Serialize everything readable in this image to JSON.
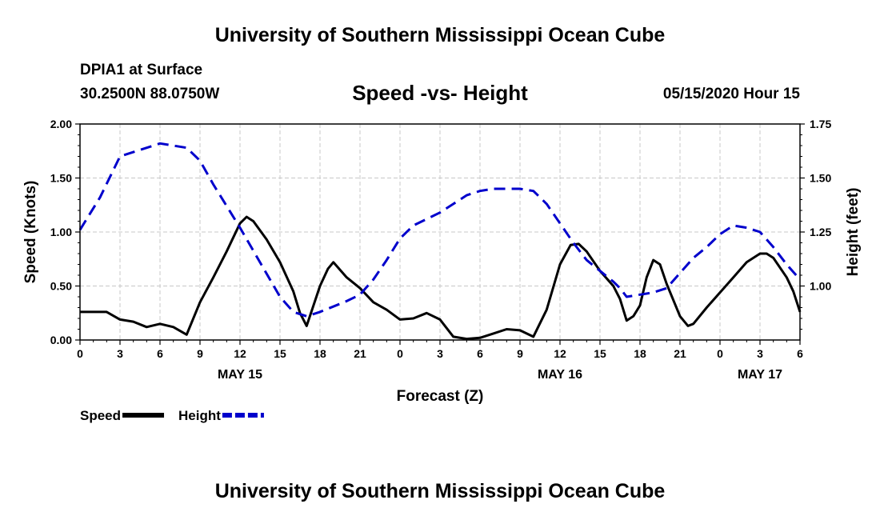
{
  "header": {
    "title": "University of Southern Mississippi Ocean Cube",
    "station_name": "DPIA1 at Surface",
    "station_coords": "30.2500N 88.0750W",
    "subtitle": "Speed -vs- Height",
    "run_time": "05/15/2020 Hour 15"
  },
  "footer": {
    "title": "University of Southern Mississippi Ocean Cube"
  },
  "chart_data": {
    "type": "line",
    "title": "Speed -vs- Height",
    "xlabel": "Forecast (Z)",
    "ylabel": "Speed (Knots)",
    "y2label": "Height (feet)",
    "xlim": [
      0,
      54
    ],
    "ylim": [
      0,
      2.0
    ],
    "y2lim": [
      0.75,
      1.75
    ],
    "x_ticks": [
      0,
      3,
      6,
      9,
      12,
      15,
      18,
      21,
      24,
      27,
      30,
      33,
      36,
      39,
      42,
      45,
      48,
      51,
      54
    ],
    "x_tick_labels": [
      "0",
      "3",
      "6",
      "9",
      "12",
      "15",
      "18",
      "21",
      "0",
      "3",
      "6",
      "9",
      "12",
      "15",
      "18",
      "21",
      "0",
      "3",
      "6"
    ],
    "day_labels": [
      {
        "x": 12,
        "label": "MAY 15"
      },
      {
        "x": 36,
        "label": "MAY 16"
      },
      {
        "x": 51,
        "label": "MAY 17"
      }
    ],
    "y_ticks": [
      0,
      0.5,
      1.0,
      1.5,
      2.0
    ],
    "y_tick_labels": [
      "0.00",
      "0.50",
      "1.00",
      "1.50",
      "2.00"
    ],
    "y2_ticks": [
      1.0,
      1.25,
      1.5,
      1.75
    ],
    "y2_tick_labels": [
      "1.00",
      "1.25",
      "1.50",
      "1.75"
    ],
    "grid": true,
    "series": [
      {
        "name": "Speed",
        "axis": "left",
        "color": "#000000",
        "style": "solid",
        "points": [
          [
            0,
            0.26
          ],
          [
            2,
            0.26
          ],
          [
            3,
            0.19
          ],
          [
            4,
            0.17
          ],
          [
            5,
            0.12
          ],
          [
            6,
            0.15
          ],
          [
            7,
            0.12
          ],
          [
            8,
            0.05
          ],
          [
            9,
            0.35
          ],
          [
            10,
            0.58
          ],
          [
            11,
            0.82
          ],
          [
            12,
            1.08
          ],
          [
            12.5,
            1.14
          ],
          [
            13,
            1.1
          ],
          [
            14,
            0.93
          ],
          [
            15,
            0.72
          ],
          [
            16,
            0.45
          ],
          [
            16.5,
            0.25
          ],
          [
            17,
            0.13
          ],
          [
            18,
            0.5
          ],
          [
            18.6,
            0.66
          ],
          [
            19,
            0.72
          ],
          [
            20,
            0.58
          ],
          [
            21,
            0.48
          ],
          [
            22,
            0.35
          ],
          [
            23,
            0.28
          ],
          [
            24,
            0.19
          ],
          [
            25,
            0.2
          ],
          [
            26,
            0.25
          ],
          [
            27,
            0.19
          ],
          [
            28,
            0.03
          ],
          [
            29,
            0.01
          ],
          [
            30,
            0.02
          ],
          [
            31,
            0.06
          ],
          [
            32,
            0.1
          ],
          [
            33,
            0.09
          ],
          [
            34,
            0.03
          ],
          [
            35,
            0.28
          ],
          [
            36,
            0.7
          ],
          [
            36.8,
            0.88
          ],
          [
            37.4,
            0.89
          ],
          [
            38,
            0.82
          ],
          [
            39,
            0.64
          ],
          [
            40,
            0.5
          ],
          [
            40.5,
            0.38
          ],
          [
            41,
            0.18
          ],
          [
            41.5,
            0.22
          ],
          [
            42,
            0.32
          ],
          [
            42.5,
            0.58
          ],
          [
            43,
            0.74
          ],
          [
            43.5,
            0.7
          ],
          [
            44,
            0.52
          ],
          [
            45,
            0.22
          ],
          [
            45.6,
            0.13
          ],
          [
            46,
            0.15
          ],
          [
            47,
            0.3
          ],
          [
            48,
            0.44
          ],
          [
            49,
            0.58
          ],
          [
            50,
            0.72
          ],
          [
            51,
            0.8
          ],
          [
            51.5,
            0.8
          ],
          [
            52,
            0.76
          ],
          [
            53,
            0.58
          ],
          [
            53.5,
            0.45
          ],
          [
            54,
            0.26
          ]
        ]
      },
      {
        "name": "Height",
        "axis": "right",
        "color": "#0000cc",
        "style": "dashed",
        "points": [
          [
            0,
            1.26
          ],
          [
            1.5,
            1.41
          ],
          [
            3,
            1.6
          ],
          [
            4,
            1.62
          ],
          [
            6,
            1.66
          ],
          [
            8,
            1.64
          ],
          [
            9,
            1.58
          ],
          [
            10,
            1.47
          ],
          [
            12,
            1.27
          ],
          [
            15,
            0.95
          ],
          [
            16,
            0.88
          ],
          [
            17,
            0.86
          ],
          [
            18,
            0.88
          ],
          [
            20,
            0.93
          ],
          [
            21,
            0.96
          ],
          [
            22,
            1.03
          ],
          [
            23,
            1.12
          ],
          [
            24,
            1.22
          ],
          [
            25,
            1.28
          ],
          [
            27,
            1.34
          ],
          [
            28,
            1.38
          ],
          [
            29,
            1.42
          ],
          [
            30,
            1.44
          ],
          [
            31,
            1.45
          ],
          [
            33,
            1.45
          ],
          [
            34,
            1.44
          ],
          [
            35,
            1.38
          ],
          [
            36,
            1.29
          ],
          [
            37,
            1.2
          ],
          [
            38,
            1.12
          ],
          [
            39,
            1.07
          ],
          [
            40,
            1.02
          ],
          [
            40.5,
            0.99
          ],
          [
            41,
            0.95
          ],
          [
            42,
            0.96
          ],
          [
            43,
            0.97
          ],
          [
            44,
            0.99
          ],
          [
            45,
            1.06
          ],
          [
            46,
            1.13
          ],
          [
            47,
            1.18
          ],
          [
            48,
            1.24
          ],
          [
            49,
            1.28
          ],
          [
            50,
            1.27
          ],
          [
            51,
            1.25
          ],
          [
            52,
            1.18
          ],
          [
            53,
            1.1
          ],
          [
            54,
            1.03
          ]
        ]
      }
    ]
  }
}
